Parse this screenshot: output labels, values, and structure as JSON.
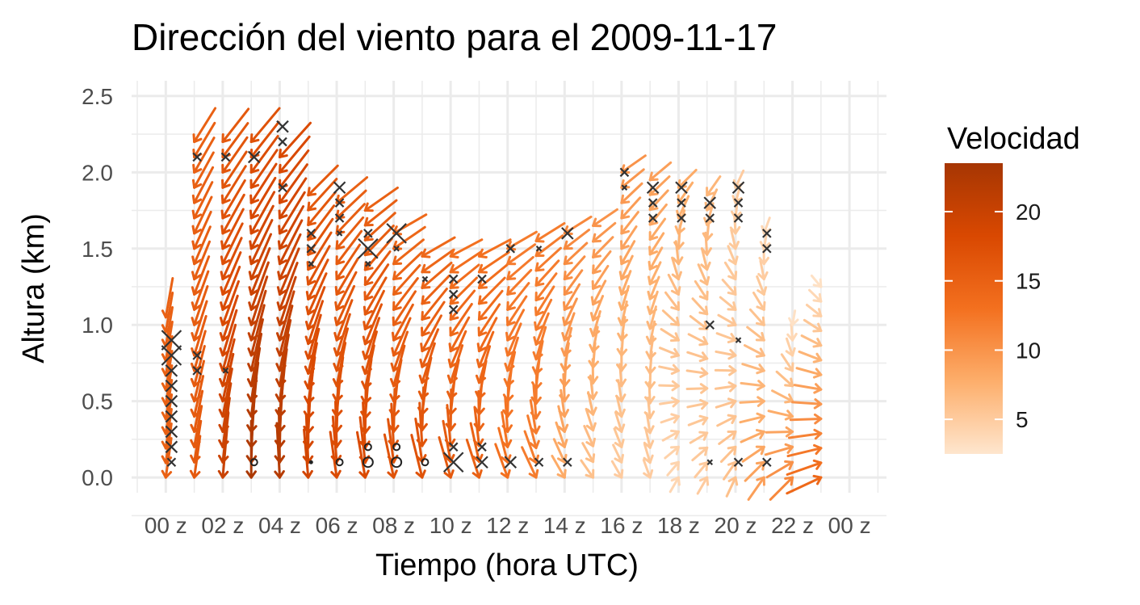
{
  "chart_data": {
    "type": "quiver",
    "title": "Dirección del viento para el 2009-11-17",
    "xlabel": "Tiempo (hora UTC)",
    "ylabel": "Altura (km)",
    "x_ticks": [
      {
        "hour": 0,
        "label": "00 z"
      },
      {
        "hour": 2,
        "label": "02 z"
      },
      {
        "hour": 4,
        "label": "04 z"
      },
      {
        "hour": 6,
        "label": "06 z"
      },
      {
        "hour": 8,
        "label": "08 z"
      },
      {
        "hour": 10,
        "label": "10 z"
      },
      {
        "hour": 12,
        "label": "12 z"
      },
      {
        "hour": 14,
        "label": "14 z"
      },
      {
        "hour": 16,
        "label": "16 z"
      },
      {
        "hour": 18,
        "label": "18 z"
      },
      {
        "hour": 20,
        "label": "20 z"
      },
      {
        "hour": 22,
        "label": "22 z"
      },
      {
        "hour": 24,
        "label": "00 z"
      }
    ],
    "xlim": [
      -1.2,
      25.3
    ],
    "ylim": [
      -0.1,
      2.6
    ],
    "y_ticks": [
      {
        "value": 0.0,
        "label": "0.0"
      },
      {
        "value": 0.5,
        "label": "0.5"
      },
      {
        "value": 1.0,
        "label": "1.0"
      },
      {
        "value": 1.5,
        "label": "1.5"
      },
      {
        "value": 2.0,
        "label": "2.0"
      },
      {
        "value": 2.5,
        "label": "2.5"
      }
    ],
    "grid": true,
    "legend": {
      "title": "Velocidad",
      "placement": "right",
      "range": [
        2.5,
        23.5
      ],
      "ticks": [
        {
          "value": 5,
          "label": "5"
        },
        {
          "value": 10,
          "label": "10"
        },
        {
          "value": 15,
          "label": "15"
        },
        {
          "value": 20,
          "label": "20"
        }
      ],
      "colors": [
        "#fee6ce",
        "#fdae6b",
        "#f3701f",
        "#d94801",
        "#a63603"
      ]
    },
    "profiles": [
      {
        "hour": 0.0,
        "top": 1.05,
        "speed": 15,
        "dir": -8,
        "speed_top": 15,
        "dir_top": -10
      },
      {
        "hour": 1.0,
        "top": 2.2,
        "speed": 16,
        "dir": -8,
        "speed_top": 15,
        "dir_top": -32
      },
      {
        "hour": 2.0,
        "top": 2.2,
        "speed": 20,
        "dir": -5,
        "speed_top": 16,
        "dir_top": -38
      },
      {
        "hour": 3.0,
        "top": 2.2,
        "speed": 23,
        "dir": 0,
        "speed_top": 17,
        "dir_top": -40
      },
      {
        "hour": 4.0,
        "top": 2.1,
        "speed": 22,
        "dir": 3,
        "speed_top": 18,
        "dir_top": -42
      },
      {
        "hour": 5.0,
        "top": 1.85,
        "speed": 19,
        "dir": 5,
        "speed_top": 16,
        "dir_top": -45
      },
      {
        "hour": 6.0,
        "top": 1.8,
        "speed": 18,
        "dir": 8,
        "speed_top": 15,
        "dir_top": -50
      },
      {
        "hour": 7.0,
        "top": 1.75,
        "speed": 18,
        "dir": 10,
        "speed_top": 15,
        "dir_top": -55
      },
      {
        "hour": 8.0,
        "top": 1.6,
        "speed": 17,
        "dir": 12,
        "speed_top": 14,
        "dir_top": -60
      },
      {
        "hour": 9.0,
        "top": 1.45,
        "speed": 17,
        "dir": 14,
        "speed_top": 14,
        "dir_top": -60
      },
      {
        "hour": 10.0,
        "top": 1.45,
        "speed": 16,
        "dir": 16,
        "speed_top": 13,
        "dir_top": -62
      },
      {
        "hour": 11.0,
        "top": 1.45,
        "speed": 15,
        "dir": 18,
        "speed_top": 13,
        "dir_top": -62
      },
      {
        "hour": 12.0,
        "top": 1.5,
        "speed": 13,
        "dir": 20,
        "speed_top": 12,
        "dir_top": -60
      },
      {
        "hour": 13.0,
        "top": 1.55,
        "speed": 12,
        "dir": 25,
        "speed_top": 12,
        "dir_top": -58
      },
      {
        "hour": 14.0,
        "top": 1.6,
        "speed": 8,
        "dir": 30,
        "speed_top": 11,
        "dir_top": -58
      },
      {
        "hour": 15.0,
        "top": 1.65,
        "speed": 6,
        "dir": 35,
        "speed_top": 10,
        "dir_top": -56
      },
      {
        "hour": 16.0,
        "top": 2.0,
        "speed": 5,
        "dir": 30,
        "speed_top": 10,
        "dir_top": -55
      },
      {
        "hour": 17.0,
        "top": 1.95,
        "speed": 5,
        "dir": 20,
        "speed_top": 9,
        "dir_top": -50
      },
      {
        "hour": 18.0,
        "top": 1.9,
        "speed": 4,
        "dir": 150,
        "speed_top": 8,
        "dir_top": -45
      },
      {
        "hour": 19.0,
        "top": 1.85,
        "speed": 5,
        "dir": 150,
        "speed_top": 7,
        "dir_top": -35
      },
      {
        "hour": 20.0,
        "top": 1.9,
        "speed": 6,
        "dir": 155,
        "speed_top": 5,
        "dir_top": -25
      },
      {
        "hour": 21.0,
        "top": 1.6,
        "speed": 9,
        "dir": 145,
        "speed_top": 4,
        "dir_top": -20
      },
      {
        "hour": 22.0,
        "top": 1.0,
        "speed": 11,
        "dir": 135,
        "speed_top": 3,
        "dir_top": -10
      },
      {
        "hour": 23.0,
        "top": 1.25,
        "speed": 14,
        "dir": 115,
        "speed_top": 3,
        "dir_top": 40
      }
    ],
    "markers": [
      {
        "hour": 0.2,
        "alt": 0.9,
        "kind": "x",
        "size": "large"
      },
      {
        "hour": 0.2,
        "alt": 0.8,
        "kind": "x",
        "size": "large"
      },
      {
        "hour": 0.2,
        "alt": 0.7,
        "kind": "x",
        "size": "medium"
      },
      {
        "hour": 0.2,
        "alt": 0.6,
        "kind": "x",
        "size": "medium"
      },
      {
        "hour": 0.2,
        "alt": 0.5,
        "kind": "x",
        "size": "medium"
      },
      {
        "hour": 0.2,
        "alt": 0.4,
        "kind": "x",
        "size": "medium"
      },
      {
        "hour": 0.2,
        "alt": 0.3,
        "kind": "x",
        "size": "medium"
      },
      {
        "hour": 0.2,
        "alt": 0.2,
        "kind": "x",
        "size": "medium"
      },
      {
        "hour": 0.2,
        "alt": 0.1,
        "kind": "x",
        "size": "small"
      },
      {
        "hour": 1.1,
        "alt": 2.1,
        "kind": "x",
        "size": "small"
      },
      {
        "hour": 1.1,
        "alt": 0.8,
        "kind": "x",
        "size": "small"
      },
      {
        "hour": 1.1,
        "alt": 0.7,
        "kind": "x",
        "size": "small"
      },
      {
        "hour": 2.1,
        "alt": 2.1,
        "kind": "x",
        "size": "small"
      },
      {
        "hour": 2.1,
        "alt": 0.7,
        "kind": "x",
        "size": "tiny"
      },
      {
        "hour": 3.1,
        "alt": 2.1,
        "kind": "x",
        "size": "medium"
      },
      {
        "hour": 3.1,
        "alt": 0.1,
        "kind": "o",
        "size": "small"
      },
      {
        "hour": 4.1,
        "alt": 2.3,
        "kind": "x",
        "size": "medium"
      },
      {
        "hour": 4.1,
        "alt": 2.2,
        "kind": "x",
        "size": "small"
      },
      {
        "hour": 4.1,
        "alt": 1.9,
        "kind": "x",
        "size": "small"
      },
      {
        "hour": 5.1,
        "alt": 1.6,
        "kind": "x",
        "size": "small"
      },
      {
        "hour": 5.1,
        "alt": 1.5,
        "kind": "x",
        "size": "small"
      },
      {
        "hour": 5.1,
        "alt": 1.4,
        "kind": "x",
        "size": "tiny"
      },
      {
        "hour": 5.1,
        "alt": 0.1,
        "kind": "dot",
        "size": "tiny"
      },
      {
        "hour": 6.1,
        "alt": 1.9,
        "kind": "x",
        "size": "medium"
      },
      {
        "hour": 6.1,
        "alt": 1.8,
        "kind": "x",
        "size": "small"
      },
      {
        "hour": 6.1,
        "alt": 1.7,
        "kind": "x",
        "size": "small"
      },
      {
        "hour": 6.1,
        "alt": 1.6,
        "kind": "x",
        "size": "tiny"
      },
      {
        "hour": 6.1,
        "alt": 0.1,
        "kind": "o",
        "size": "small"
      },
      {
        "hour": 7.1,
        "alt": 1.6,
        "kind": "x",
        "size": "small"
      },
      {
        "hour": 7.1,
        "alt": 1.5,
        "kind": "x",
        "size": "large"
      },
      {
        "hour": 7.1,
        "alt": 1.4,
        "kind": "x",
        "size": "tiny"
      },
      {
        "hour": 7.1,
        "alt": 0.2,
        "kind": "o",
        "size": "small"
      },
      {
        "hour": 7.1,
        "alt": 0.1,
        "kind": "o",
        "size": "medium"
      },
      {
        "hour": 8.1,
        "alt": 1.6,
        "kind": "x",
        "size": "large"
      },
      {
        "hour": 8.1,
        "alt": 1.5,
        "kind": "x",
        "size": "tiny"
      },
      {
        "hour": 8.1,
        "alt": 0.2,
        "kind": "o",
        "size": "small"
      },
      {
        "hour": 8.1,
        "alt": 0.1,
        "kind": "o",
        "size": "medium"
      },
      {
        "hour": 9.1,
        "alt": 1.3,
        "kind": "x",
        "size": "tiny"
      },
      {
        "hour": 9.1,
        "alt": 0.1,
        "kind": "o",
        "size": "small"
      },
      {
        "hour": 10.1,
        "alt": 1.3,
        "kind": "x",
        "size": "small"
      },
      {
        "hour": 10.1,
        "alt": 1.2,
        "kind": "x",
        "size": "small"
      },
      {
        "hour": 10.1,
        "alt": 1.1,
        "kind": "x",
        "size": "small"
      },
      {
        "hour": 10.1,
        "alt": 0.2,
        "kind": "x",
        "size": "small"
      },
      {
        "hour": 10.1,
        "alt": 0.1,
        "kind": "x",
        "size": "large"
      },
      {
        "hour": 11.1,
        "alt": 1.3,
        "kind": "x",
        "size": "small"
      },
      {
        "hour": 11.1,
        "alt": 0.2,
        "kind": "x",
        "size": "small"
      },
      {
        "hour": 11.1,
        "alt": 0.1,
        "kind": "x",
        "size": "medium"
      },
      {
        "hour": 12.1,
        "alt": 1.5,
        "kind": "x",
        "size": "small"
      },
      {
        "hour": 12.1,
        "alt": 0.1,
        "kind": "x",
        "size": "medium"
      },
      {
        "hour": 13.1,
        "alt": 1.5,
        "kind": "x",
        "size": "tiny"
      },
      {
        "hour": 13.1,
        "alt": 0.1,
        "kind": "x",
        "size": "small"
      },
      {
        "hour": 14.1,
        "alt": 1.6,
        "kind": "x",
        "size": "medium"
      },
      {
        "hour": 14.1,
        "alt": 0.1,
        "kind": "x",
        "size": "small"
      },
      {
        "hour": 16.1,
        "alt": 2.0,
        "kind": "x",
        "size": "small"
      },
      {
        "hour": 16.1,
        "alt": 1.9,
        "kind": "x",
        "size": "tiny"
      },
      {
        "hour": 17.1,
        "alt": 1.9,
        "kind": "x",
        "size": "medium"
      },
      {
        "hour": 17.1,
        "alt": 1.8,
        "kind": "x",
        "size": "small"
      },
      {
        "hour": 17.1,
        "alt": 1.7,
        "kind": "x",
        "size": "small"
      },
      {
        "hour": 18.1,
        "alt": 1.9,
        "kind": "x",
        "size": "medium"
      },
      {
        "hour": 18.1,
        "alt": 1.8,
        "kind": "x",
        "size": "small"
      },
      {
        "hour": 18.1,
        "alt": 1.7,
        "kind": "x",
        "size": "small"
      },
      {
        "hour": 19.1,
        "alt": 1.8,
        "kind": "x",
        "size": "medium"
      },
      {
        "hour": 19.1,
        "alt": 1.7,
        "kind": "x",
        "size": "small"
      },
      {
        "hour": 19.1,
        "alt": 1.0,
        "kind": "x",
        "size": "small"
      },
      {
        "hour": 19.1,
        "alt": 0.1,
        "kind": "x",
        "size": "tiny"
      },
      {
        "hour": 20.1,
        "alt": 1.9,
        "kind": "x",
        "size": "medium"
      },
      {
        "hour": 20.1,
        "alt": 1.8,
        "kind": "x",
        "size": "small"
      },
      {
        "hour": 20.1,
        "alt": 1.7,
        "kind": "x",
        "size": "small"
      },
      {
        "hour": 20.1,
        "alt": 0.9,
        "kind": "x",
        "size": "tiny"
      },
      {
        "hour": 20.1,
        "alt": 0.1,
        "kind": "x",
        "size": "small"
      },
      {
        "hour": 21.1,
        "alt": 1.6,
        "kind": "x",
        "size": "small"
      },
      {
        "hour": 21.1,
        "alt": 1.5,
        "kind": "x",
        "size": "small"
      },
      {
        "hour": 21.1,
        "alt": 0.1,
        "kind": "x",
        "size": "small"
      }
    ]
  }
}
